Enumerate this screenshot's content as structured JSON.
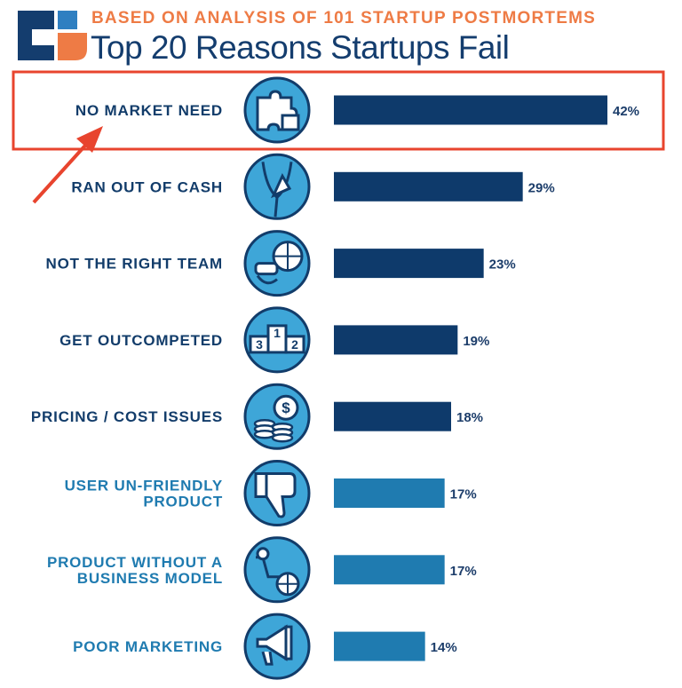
{
  "header": {
    "subtitle": "BASED ON ANALYSIS OF 101 STARTUP POSTMORTEMS",
    "title": "Top 20 Reasons Startups Fail"
  },
  "colors": {
    "dark_bar": "#0e3a6b",
    "light_bar": "#1f7bb0",
    "dark_label": "#123c6a",
    "light_label": "#1f7bb0",
    "accent": "#ee7b45",
    "highlight": "#e8442e",
    "icon_fill": "#3ea6d8",
    "icon_stroke": "#123c6a"
  },
  "chart_data": {
    "type": "bar",
    "orientation": "horizontal",
    "title": "Top 20 Reasons Startups Fail",
    "subtitle": "BASED ON ANALYSIS OF 101 STARTUP POSTMORTEMS",
    "categories": [
      "NO MARKET NEED",
      "RAN OUT OF CASH",
      "NOT THE RIGHT TEAM",
      "GET OUTCOMPETED",
      "PRICING / COST ISSUES",
      "USER UN-FRIENDLY\nPRODUCT",
      "PRODUCT WITHOUT A\nBUSINESS MODEL",
      "POOR MARKETING"
    ],
    "values": [
      42,
      29,
      23,
      19,
      18,
      17,
      17,
      14
    ],
    "value_labels": [
      "42%",
      "29%",
      "23%",
      "19%",
      "18%",
      "17%",
      "17%",
      "14%"
    ],
    "icons": [
      "puzzle-icon",
      "empty-pocket-icon",
      "vr-headset-icon",
      "podium-icon",
      "coins-icon",
      "thumbs-down-icon",
      "cart-icon",
      "megaphone-icon"
    ],
    "bar_style": [
      "dark",
      "dark",
      "dark",
      "dark",
      "dark",
      "light",
      "light",
      "light"
    ],
    "highlighted_index": 0,
    "xlim": [
      0,
      42
    ],
    "grid": false,
    "legend": "none"
  }
}
